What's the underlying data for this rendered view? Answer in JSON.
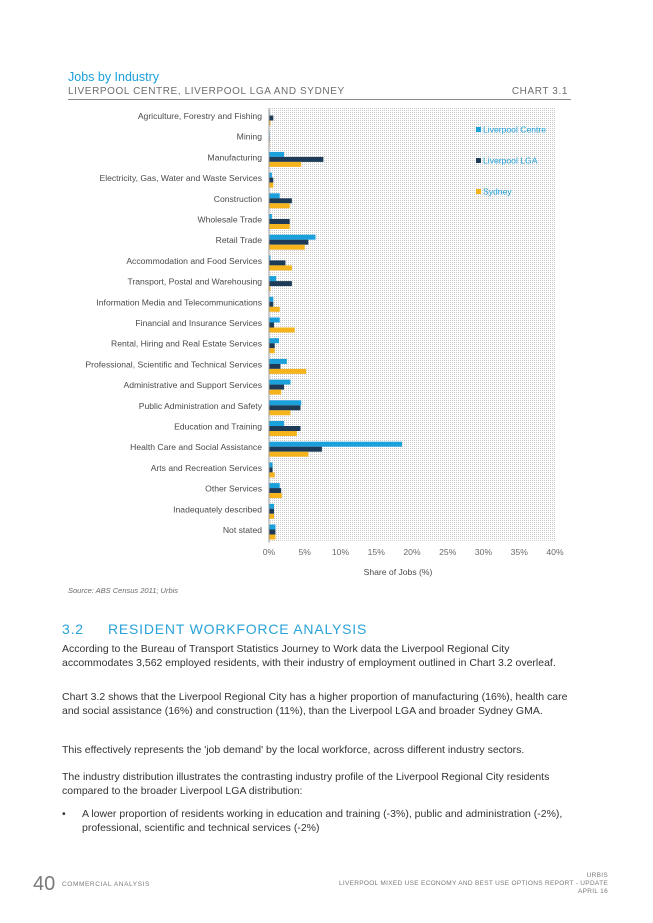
{
  "header": {
    "title": "Jobs by Industry",
    "subtitle": "LIVERPOOL CENTRE, LIVERPOOL LGA AND SYDNEY",
    "chart_number": "CHART 3.1"
  },
  "source": "Source: ABS Census 2011; Urbis",
  "section": {
    "number": "3.2",
    "title": "RESIDENT WORKFORCE ANALYSIS"
  },
  "paragraphs": [
    "According to the Bureau of Transport Statistics Journey to Work data the Liverpool Regional City accommodates 3,562 employed residents, with their industry of employment outlined in Chart 3.2 overleaf.",
    "Chart 3.2 shows that the Liverpool Regional City has a higher proportion of manufacturing (16%), health care and social assistance (16%) and construction (11%), than the Liverpool LGA and broader Sydney GMA.",
    "This effectively represents the 'job demand' by the local workforce, across different industry sectors.",
    "The industry distribution illustrates the contrasting industry profile of the Liverpool Regional City residents compared to the broader Liverpool LGA distribution:"
  ],
  "bullets": [
    "A lower proportion of residents working in education and training (-3%), public and administration (-2%), professional, scientific and technical services (-2%)"
  ],
  "footer": {
    "page_number": "40",
    "left_text": "COMMERCIAL ANALYSIS",
    "right_line1": "URBIS",
    "right_line2": "LIVERPOOL MIXED USE ECONOMY AND BEST USE OPTIONS REPORT - UPDATE",
    "right_line3": "APRIL 16"
  },
  "chart_data": {
    "type": "bar",
    "orientation": "horizontal",
    "title": "Jobs by Industry",
    "xlabel": "Share of Jobs (%)",
    "xlim": [
      0,
      40
    ],
    "xticks": [
      "0%",
      "5%",
      "10%",
      "15%",
      "20%",
      "25%",
      "30%",
      "35%",
      "40%"
    ],
    "grid": true,
    "legend_position": "top-right",
    "colors": [
      "#1aa0db",
      "#1d3b57",
      "#f5b31c"
    ],
    "categories": [
      "Agriculture, Forestry and Fishing",
      "Mining",
      "Manufacturing",
      "Electricity, Gas, Water and Waste Services",
      "Construction",
      "Wholesale Trade",
      "Retail Trade",
      "Accommodation and Food Services",
      "Transport, Postal and Warehousing",
      "Information Media and Telecommunications",
      "Financial and Insurance Services",
      "Rental, Hiring and Real Estate Services",
      "Professional, Scientific and Technical Services",
      "Administrative and Support Services",
      "Public Administration and Safety",
      "Education and Training",
      "Health Care and Social Assistance",
      "Arts and Recreation Services",
      "Other Services",
      "Inadequately described",
      "Not stated"
    ],
    "series": [
      {
        "name": "Liverpool Centre",
        "values": [
          0.1,
          0.1,
          2.1,
          0.4,
          1.5,
          0.4,
          6.5,
          0.2,
          1.0,
          0.6,
          1.5,
          1.4,
          2.5,
          3.0,
          4.5,
          2.1,
          18.6,
          0.5,
          1.5,
          0.7,
          0.9
        ]
      },
      {
        "name": "Liverpool LGA",
        "values": [
          0.6,
          0.1,
          7.6,
          0.6,
          3.2,
          2.9,
          5.5,
          2.3,
          3.2,
          0.6,
          0.7,
          0.8,
          1.6,
          2.1,
          4.4,
          4.4,
          7.4,
          0.5,
          1.7,
          0.7,
          0.9
        ]
      },
      {
        "name": "Sydney",
        "values": [
          0.2,
          0.1,
          4.5,
          0.6,
          2.9,
          2.9,
          5.0,
          3.2,
          0.2,
          1.5,
          3.6,
          0.8,
          5.2,
          1.7,
          3.0,
          3.9,
          5.5,
          0.8,
          1.8,
          0.7,
          0.9
        ]
      }
    ]
  }
}
